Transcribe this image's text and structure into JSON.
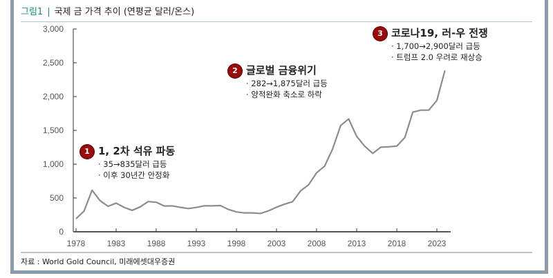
{
  "header": {
    "figure": "그림1",
    "title": "국제 금 가격 추이 (연평균 달러/온스)"
  },
  "source": "자료 : World Gold Council, 미래에셋대우증권",
  "annotations": [
    {
      "num": "1",
      "title": "1, 2차 석유 파동",
      "lines": [
        "· 35→835달러 급등",
        "· 이후 30년간 안정화"
      ]
    },
    {
      "num": "2",
      "title": "글로벌 금융위기",
      "lines": [
        "· 282→1,875달러 급등",
        "· 양적완화 축소로 하락"
      ]
    },
    {
      "num": "3",
      "title": "코로나19, 러-우 전쟁",
      "lines": [
        "· 1,700→2,900달러 급등",
        "· 트럼프 2.0 우려로 재상승"
      ]
    }
  ],
  "chart_data": {
    "type": "line",
    "title": "",
    "xlabel": "",
    "ylabel": "",
    "ylim": [
      0,
      3000
    ],
    "xlim": [
      1978,
      2024
    ],
    "grid": false,
    "y_ticks": [
      "0",
      "500",
      "1,000",
      "1,500",
      "2,000",
      "2,500",
      "3,000"
    ],
    "x_ticks": [
      "1978",
      "1983",
      "1988",
      "1993",
      "1998",
      "2003",
      "2008",
      "2013",
      "2018",
      "2023"
    ],
    "line_color": "#8c8c8c",
    "x": [
      1978,
      1979,
      1980,
      1981,
      1982,
      1983,
      1984,
      1985,
      1986,
      1987,
      1988,
      1989,
      1990,
      1991,
      1992,
      1993,
      1994,
      1995,
      1996,
      1997,
      1998,
      1999,
      2000,
      2001,
      2002,
      2003,
      2004,
      2005,
      2006,
      2007,
      2008,
      2009,
      2010,
      2011,
      2012,
      2013,
      2014,
      2015,
      2016,
      2017,
      2018,
      2019,
      2020,
      2021,
      2022,
      2023,
      2024
    ],
    "y": [
      193,
      306,
      615,
      460,
      376,
      424,
      361,
      317,
      368,
      447,
      437,
      381,
      383,
      362,
      344,
      360,
      384,
      384,
      388,
      331,
      294,
      279,
      279,
      271,
      310,
      363,
      409,
      444,
      604,
      695,
      872,
      972,
      1225,
      1572,
      1669,
      1411,
      1266,
      1160,
      1251,
      1257,
      1268,
      1393,
      1770,
      1799,
      1800,
      1943,
      2386
    ]
  }
}
